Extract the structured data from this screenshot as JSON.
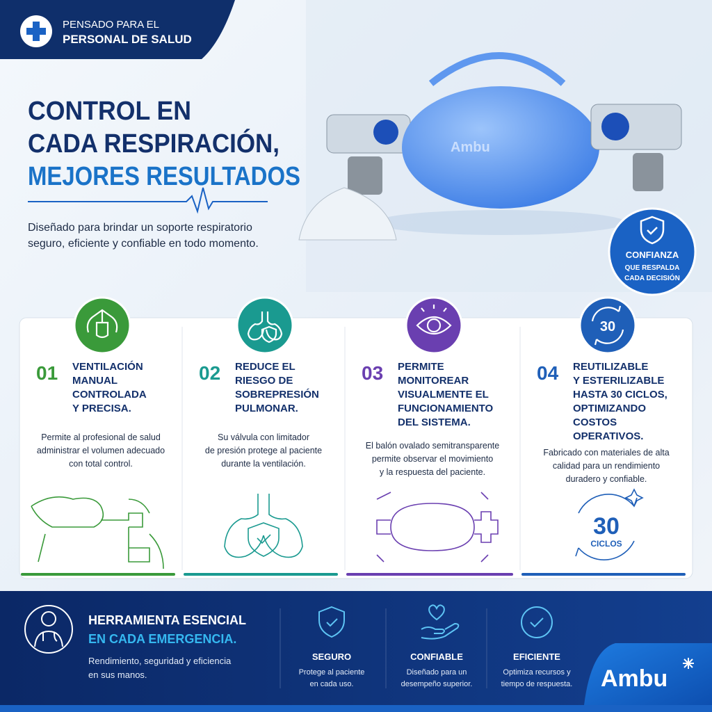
{
  "badge": {
    "lines": [
      "PENSADO PARA EL",
      "PERSONAL DE SALUD"
    ]
  },
  "headline": {
    "lines": [
      "CONTROL EN",
      "CADA RESPIRACIÓN,",
      "MEJORES RESULTADOS"
    ]
  },
  "description": {
    "lines": [
      "Diseñado para brindar un soporte respiratorio",
      "seguro, eficiente y confiable en todo momento."
    ]
  },
  "product": {
    "brand": "Ambu"
  },
  "seal": {
    "lines": [
      "CONFIANZA",
      "QUE RESPALDA",
      "CADA DECISIÓN"
    ]
  },
  "features": [
    {
      "number": "01",
      "title": [
        "VENTILACIÓN",
        "MANUAL",
        "CONTROLADA",
        "Y PRECISA."
      ],
      "body": [
        "Permite al profesional de salud",
        "administrar el volumen adecuado",
        "con total control."
      ]
    },
    {
      "number": "02",
      "title": [
        "REDUCE EL",
        "RIESGO DE",
        "SOBREPRESIÓN",
        "PULMONAR."
      ],
      "body": [
        "Su válvula con limitador",
        "de presión protege al paciente",
        "durante la ventilación."
      ]
    },
    {
      "number": "03",
      "title": [
        "PERMITE",
        "MONITOREAR",
        "VISUALMENTE EL",
        "FUNCIONAMIENTO",
        "DEL SISTEMA."
      ],
      "body": [
        "El balón ovalado semitransparente",
        "permite observar el movimiento",
        "y la respuesta del paciente."
      ]
    },
    {
      "number": "04",
      "title": [
        "REUTILIZABLE",
        "Y ESTERILIZABLE",
        "HASTA 30 CICLOS,",
        "OPTIMIZANDO",
        "COSTOS",
        "OPERATIVOS."
      ],
      "body": [
        "Fabricado con materiales de alta",
        "calidad para un rendimiento",
        "duradero y confiable."
      ],
      "icon_text": "30",
      "badge": {
        "number": "30",
        "label": "CICLOS"
      }
    }
  ],
  "footer": {
    "title": [
      "HERRAMIENTA ESENCIAL",
      "EN CADA EMERGENCIA."
    ],
    "subtitle": [
      "Rendimiento, seguridad y eficiencia",
      "en sus manos."
    ],
    "pillars": [
      {
        "name": "SEGURO",
        "desc": [
          "Protege al paciente",
          "en cada uso."
        ]
      },
      {
        "name": "CONFIABLE",
        "desc": [
          "Diseñado para un",
          "desempeño superior."
        ]
      },
      {
        "name": "EFICIENTE",
        "desc": [
          "Optimiza recursos y",
          "tiempo de respuesta."
        ]
      }
    ],
    "logo": "Ambu"
  }
}
